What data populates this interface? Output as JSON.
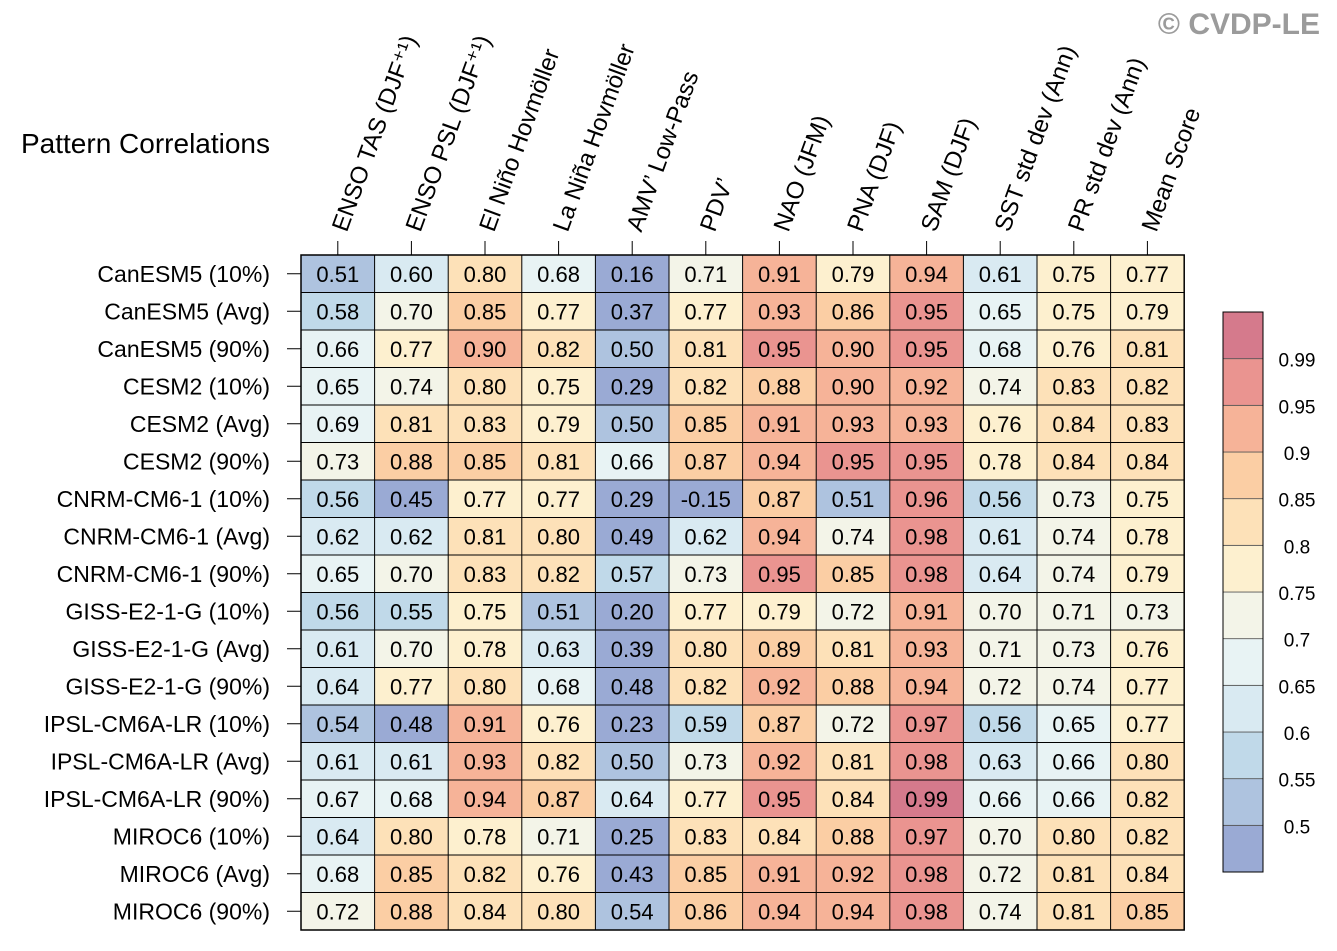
{
  "watermark": "© CVDP-LE",
  "chart_data": {
    "type": "heatmap",
    "title": "Pattern Correlations",
    "columns": [
      "ENSO TAS (DJF⁺¹)",
      "ENSO PSL (DJF⁺¹)",
      "El Niño Hovmöller",
      "La Niña Hovmöller",
      "AMV’ Low-Pass",
      "PDV’",
      "NAO (JFM)",
      "PNA (DJF)",
      "SAM (DJF)",
      "SST std dev (Ann)",
      "PR std dev (Ann)",
      "Mean Score"
    ],
    "rows": [
      "CanESM5 (10%)",
      "CanESM5 (Avg)",
      "CanESM5 (90%)",
      "CESM2 (10%)",
      "CESM2 (Avg)",
      "CESM2 (90%)",
      "CNRM-CM6-1 (10%)",
      "CNRM-CM6-1 (Avg)",
      "CNRM-CM6-1 (90%)",
      "GISS-E2-1-G (10%)",
      "GISS-E2-1-G (Avg)",
      "GISS-E2-1-G (90%)",
      "IPSL-CM6A-LR (10%)",
      "IPSL-CM6A-LR (Avg)",
      "IPSL-CM6A-LR (90%)",
      "MIROC6 (10%)",
      "MIROC6 (Avg)",
      "MIROC6 (90%)"
    ],
    "values": [
      [
        "0.51",
        "0.60",
        "0.80",
        "0.68",
        "0.16",
        "0.71",
        "0.91",
        "0.79",
        "0.94",
        "0.61",
        "0.75",
        "0.77"
      ],
      [
        "0.58",
        "0.70",
        "0.85",
        "0.77",
        "0.37",
        "0.77",
        "0.93",
        "0.86",
        "0.95",
        "0.65",
        "0.75",
        "0.79"
      ],
      [
        "0.66",
        "0.77",
        "0.90",
        "0.82",
        "0.50",
        "0.81",
        "0.95",
        "0.90",
        "0.95",
        "0.68",
        "0.76",
        "0.81"
      ],
      [
        "0.65",
        "0.74",
        "0.80",
        "0.75",
        "0.29",
        "0.82",
        "0.88",
        "0.90",
        "0.92",
        "0.74",
        "0.83",
        "0.82"
      ],
      [
        "0.69",
        "0.81",
        "0.83",
        "0.79",
        "0.50",
        "0.85",
        "0.91",
        "0.93",
        "0.93",
        "0.76",
        "0.84",
        "0.83"
      ],
      [
        "0.73",
        "0.88",
        "0.85",
        "0.81",
        "0.66",
        "0.87",
        "0.94",
        "0.95",
        "0.95",
        "0.78",
        "0.84",
        "0.84"
      ],
      [
        "0.56",
        "0.45",
        "0.77",
        "0.77",
        "0.29",
        "-0.15",
        "0.87",
        "0.51",
        "0.96",
        "0.56",
        "0.73",
        "0.75"
      ],
      [
        "0.62",
        "0.62",
        "0.81",
        "0.80",
        "0.49",
        "0.62",
        "0.94",
        "0.74",
        "0.98",
        "0.61",
        "0.74",
        "0.78"
      ],
      [
        "0.65",
        "0.70",
        "0.83",
        "0.82",
        "0.57",
        "0.73",
        "0.95",
        "0.85",
        "0.98",
        "0.64",
        "0.74",
        "0.79"
      ],
      [
        "0.56",
        "0.55",
        "0.75",
        "0.51",
        "0.20",
        "0.77",
        "0.79",
        "0.72",
        "0.91",
        "0.70",
        "0.71",
        "0.73"
      ],
      [
        "0.61",
        "0.70",
        "0.78",
        "0.63",
        "0.39",
        "0.80",
        "0.89",
        "0.81",
        "0.93",
        "0.71",
        "0.73",
        "0.76"
      ],
      [
        "0.64",
        "0.77",
        "0.80",
        "0.68",
        "0.48",
        "0.82",
        "0.92",
        "0.88",
        "0.94",
        "0.72",
        "0.74",
        "0.77"
      ],
      [
        "0.54",
        "0.48",
        "0.91",
        "0.76",
        "0.23",
        "0.59",
        "0.87",
        "0.72",
        "0.97",
        "0.56",
        "0.65",
        "0.77"
      ],
      [
        "0.61",
        "0.61",
        "0.93",
        "0.82",
        "0.50",
        "0.73",
        "0.92",
        "0.81",
        "0.98",
        "0.63",
        "0.66",
        "0.80"
      ],
      [
        "0.67",
        "0.68",
        "0.94",
        "0.87",
        "0.64",
        "0.77",
        "0.95",
        "0.84",
        "0.99",
        "0.66",
        "0.66",
        "0.82"
      ],
      [
        "0.64",
        "0.80",
        "0.78",
        "0.71",
        "0.25",
        "0.83",
        "0.84",
        "0.88",
        "0.97",
        "0.70",
        "0.80",
        "0.82"
      ],
      [
        "0.68",
        "0.85",
        "0.82",
        "0.76",
        "0.43",
        "0.85",
        "0.91",
        "0.92",
        "0.98",
        "0.72",
        "0.81",
        "0.84"
      ],
      [
        "0.72",
        "0.88",
        "0.84",
        "0.80",
        "0.54",
        "0.86",
        "0.94",
        "0.94",
        "0.98",
        "0.74",
        "0.81",
        "0.85"
      ]
    ],
    "colorbar": {
      "levels": [
        "0.5",
        "0.55",
        "0.6",
        "0.65",
        "0.7",
        "0.75",
        "0.8",
        "0.85",
        "0.9",
        "0.95",
        "0.99"
      ],
      "colors": [
        "#9aaad4",
        "#aec3df",
        "#c0d9e9",
        "#d9eaf2",
        "#e8f3f4",
        "#f3f4e8",
        "#fdf0cf",
        "#fde1b8",
        "#fbcea4",
        "#f6b398",
        "#ea9490",
        "#d57a8c"
      ]
    }
  }
}
